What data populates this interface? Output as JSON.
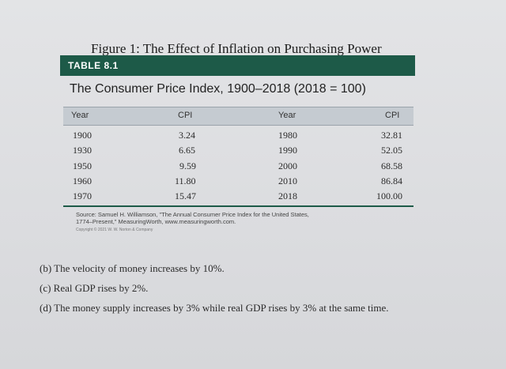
{
  "figure_title": "Figure 1: The Effect of Inflation on Purchasing Power",
  "table_label": "TABLE 8.1",
  "table_title": "The Consumer Price Index, 1900–2018 (2018 = 100)",
  "headers": {
    "year_left": "Year",
    "cpi_left": "CPI",
    "year_right": "Year",
    "cpi_right": "CPI"
  },
  "left_rows": [
    {
      "year": "1900",
      "cpi": "3.24"
    },
    {
      "year": "1930",
      "cpi": "6.65"
    },
    {
      "year": "1950",
      "cpi": "9.59"
    },
    {
      "year": "1960",
      "cpi": "11.80"
    },
    {
      "year": "1970",
      "cpi": "15.47"
    }
  ],
  "right_rows": [
    {
      "year": "1980",
      "cpi": "32.81"
    },
    {
      "year": "1990",
      "cpi": "52.05"
    },
    {
      "year": "2000",
      "cpi": "68.58"
    },
    {
      "year": "2010",
      "cpi": "86.84"
    },
    {
      "year": "2018",
      "cpi": "100.00"
    }
  ],
  "source_line1": "Source: Samuel H. Williamson, \"The Annual Consumer Price Index for the United States,",
  "source_line2": "1774–Present,\" MeasuringWorth, www.measuringworth.com.",
  "copyright": "Copyright © 2021 W. W. Norton & Company",
  "choices": [
    "(b) The velocity of money increases by 10%.",
    "(c) Real GDP rises by 2%.",
    "(d) The money supply increases by 3% while real GDP rises by 3% at the same time."
  ],
  "colors": {
    "table_bar": "#1d5a48",
    "header_bg": "#c5cbd1"
  }
}
